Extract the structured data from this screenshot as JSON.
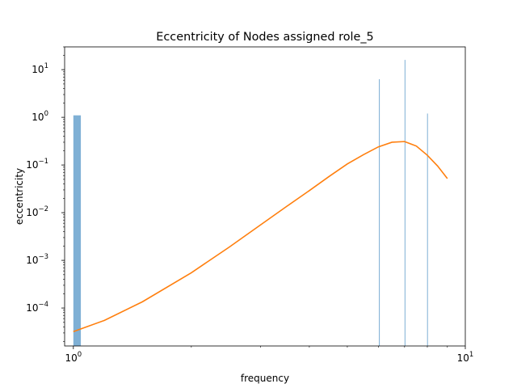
{
  "chart_data": {
    "type": "bar",
    "title": "Eccentricity of Nodes assigned role_5",
    "xlabel": "frequency",
    "ylabel": "eccentricity",
    "xscale": "log",
    "yscale": "log",
    "xlim": [
      0.95,
      10.0
    ],
    "ylim": [
      1.6e-05,
      30
    ],
    "grid": false,
    "x_ticks": [
      {
        "value": 1,
        "label": "10",
        "exp": "0"
      },
      {
        "value": 10,
        "label": "10",
        "exp": "1"
      }
    ],
    "y_ticks": [
      {
        "value": 0.0001,
        "label": "10",
        "exp": "−4"
      },
      {
        "value": 0.001,
        "label": "10",
        "exp": "−3"
      },
      {
        "value": 0.01,
        "label": "10",
        "exp": "−2"
      },
      {
        "value": 0.1,
        "label": "10",
        "exp": "−1"
      },
      {
        "value": 1,
        "label": "10",
        "exp": "0"
      },
      {
        "value": 10,
        "label": "10",
        "exp": "1"
      }
    ],
    "histogram": {
      "color": "#7fb0d5",
      "bars": [
        {
          "x_start": 1.0,
          "x_end": 1.045,
          "value": 1.1
        },
        {
          "x_start": 6.02,
          "x_end": 6.05,
          "value": 6.3
        },
        {
          "x_start": 7.0,
          "x_end": 7.02,
          "value": 16.0
        },
        {
          "x_start": 7.99,
          "x_end": 8.0,
          "value": 1.2
        }
      ]
    },
    "series": [
      {
        "color": "#ff7f0e",
        "x": [
          1.0,
          1.2,
          1.5,
          2.0,
          2.5,
          3.0,
          3.5,
          4.0,
          4.5,
          5.0,
          5.5,
          6.0,
          6.5,
          7.0,
          7.5,
          8.0,
          8.5,
          9.0
        ],
        "y": [
          3.2e-05,
          5.5e-05,
          0.000135,
          0.00055,
          0.0019,
          0.0055,
          0.0135,
          0.029,
          0.058,
          0.105,
          0.165,
          0.24,
          0.3,
          0.31,
          0.25,
          0.16,
          0.095,
          0.052
        ]
      }
    ]
  }
}
